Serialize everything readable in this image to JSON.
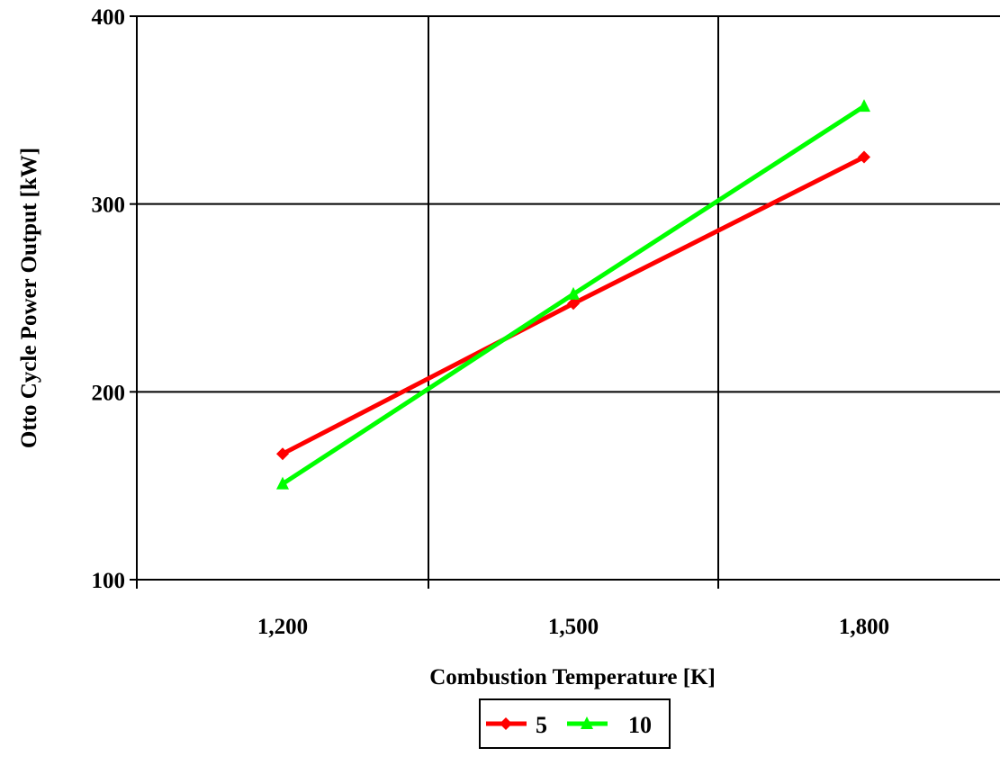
{
  "chart_data": {
    "type": "line",
    "x": [
      "1,200",
      "1,500",
      "1,800"
    ],
    "x_values": [
      1200,
      1500,
      1800
    ],
    "xlabel": "Combustion Temperature [K]",
    "ylabel": "Otto Cycle Power Output [kW]",
    "ylim": [
      100,
      400
    ],
    "yticks": [
      100,
      200,
      300,
      400
    ],
    "ytick_labels": [
      "100",
      "200",
      "300",
      "400"
    ],
    "grid": true,
    "legend_position": "bottom-center",
    "series": [
      {
        "name": "5",
        "values": [
          167,
          247,
          325
        ],
        "color": "#ff0000",
        "marker": "diamond"
      },
      {
        "name": "10",
        "values": [
          151,
          252,
          352
        ],
        "color": "#00ff00",
        "marker": "triangle"
      }
    ]
  }
}
